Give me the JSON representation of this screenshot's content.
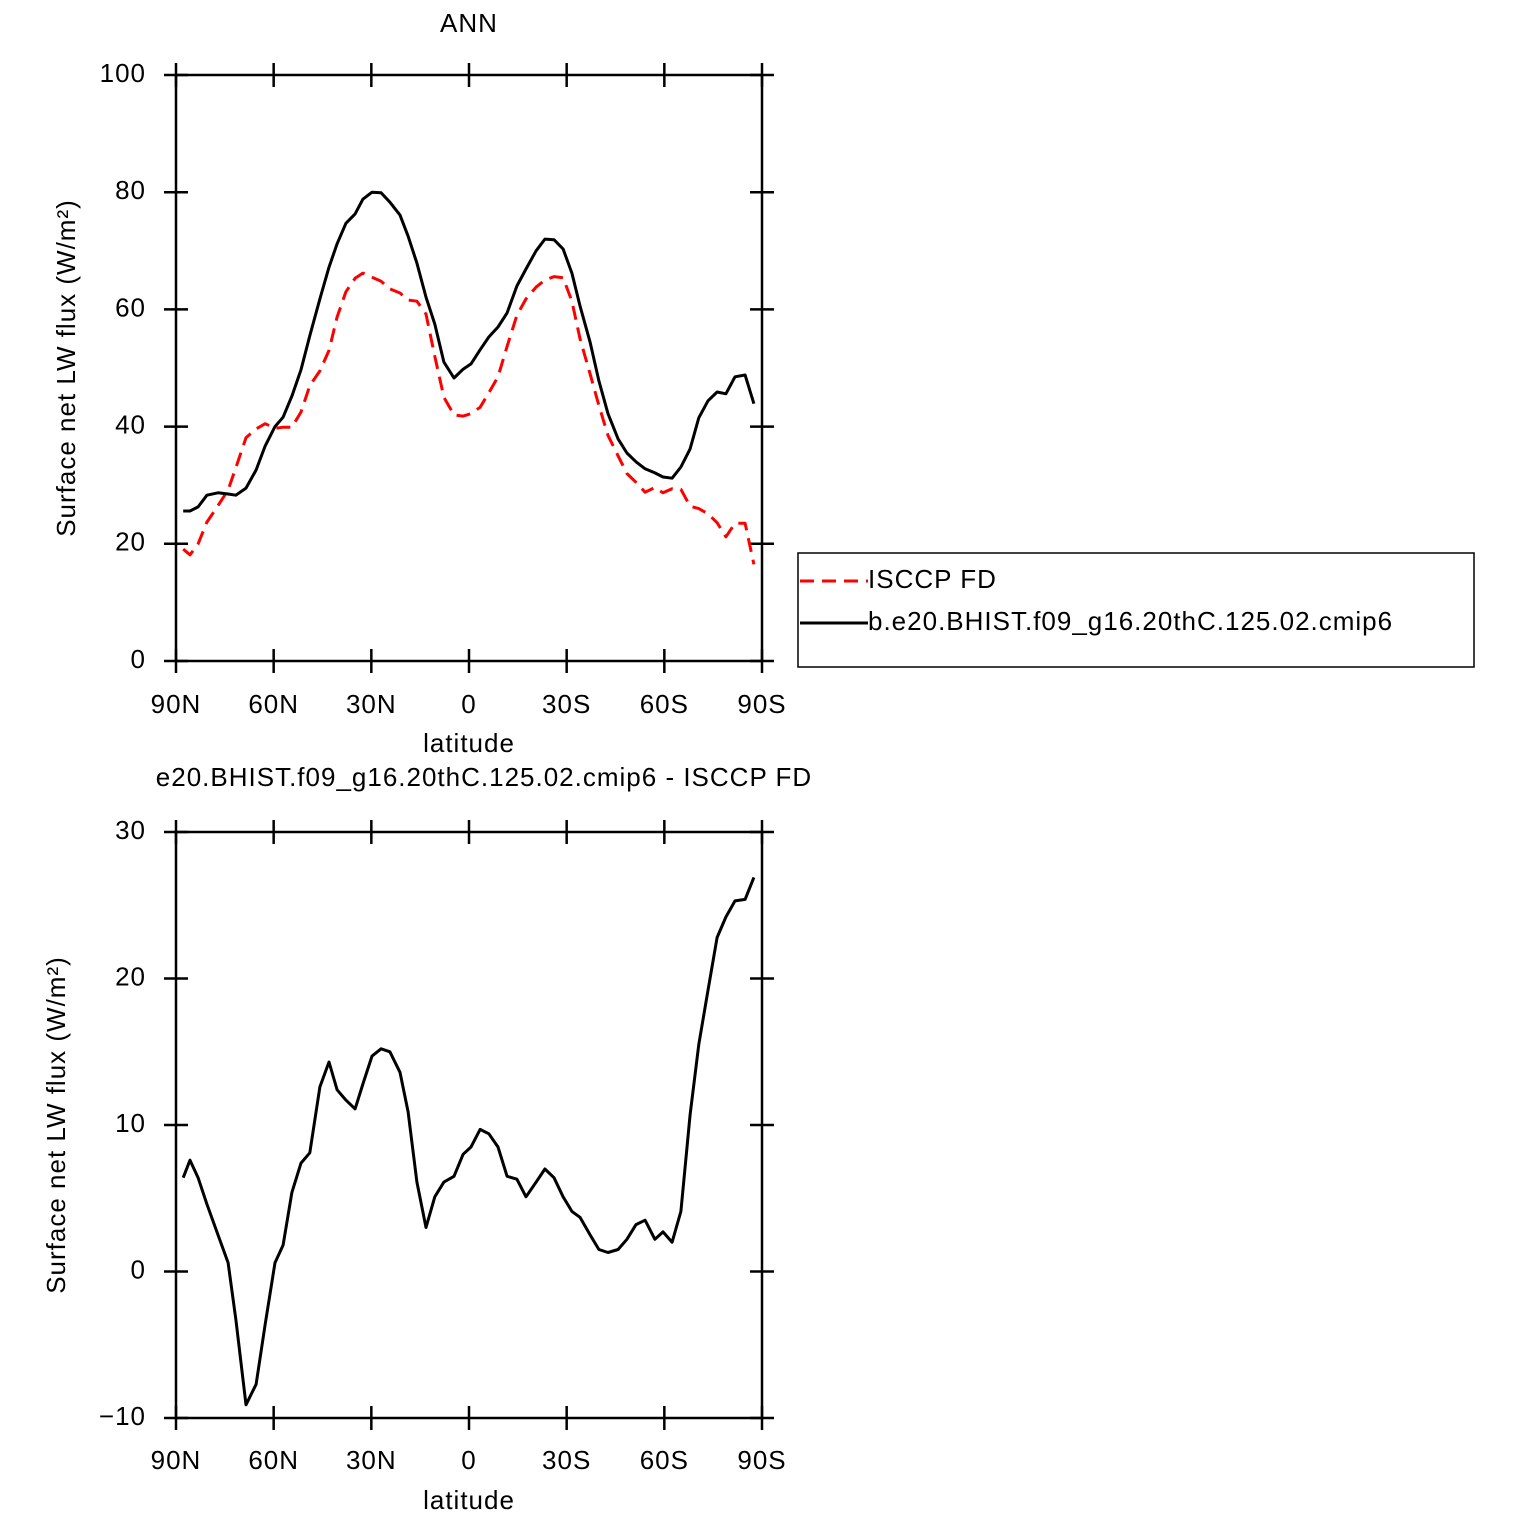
{
  "chart_data": [
    {
      "type": "line",
      "title": "ANN",
      "xlabel": "latitude",
      "ylabel": "Surface net LW flux (W/m²)",
      "x": [
        87.8,
        85.7,
        83.2,
        80.5,
        77.1,
        74.0,
        71.6,
        68.5,
        65.4,
        62.6,
        59.6,
        57.1,
        54.4,
        51.6,
        48.9,
        45.8,
        43.0,
        40.5,
        37.8,
        35.0,
        32.6,
        29.8,
        27.0,
        24.3,
        21.2,
        18.7,
        16.0,
        13.2,
        10.5,
        7.7,
        4.6,
        1.8,
        -0.6,
        -3.4,
        -6.1,
        -8.9,
        -11.7,
        -14.7,
        -17.5,
        -20.6,
        -23.3,
        -26.1,
        -28.9,
        -31.6,
        -34.1,
        -37.2,
        -39.9,
        -42.7,
        -45.8,
        -48.5,
        -51.3,
        -54.1,
        -57.1,
        -59.6,
        -62.4,
        -65.1,
        -67.9,
        -70.6,
        -73.4,
        -76.2,
        -78.9,
        -81.7,
        -84.8,
        -87.5
      ],
      "xlim": [
        90,
        -90
      ],
      "xticks": [
        {
          "value": 90,
          "label": "90N"
        },
        {
          "value": 60,
          "label": "60N"
        },
        {
          "value": 30,
          "label": "30N"
        },
        0,
        {
          "value": -30,
          "label": "30S"
        },
        {
          "value": -60,
          "label": "60S"
        },
        {
          "value": -90,
          "label": "90S"
        }
      ],
      "ylim": [
        0,
        100
      ],
      "yticks": [
        0,
        20,
        40,
        60,
        80,
        100
      ],
      "legend": "right",
      "series": [
        {
          "name": "ISCCP FD",
          "color": "#ff0000",
          "dash": "dashed",
          "values": [
            19.1,
            18.1,
            20.0,
            23.7,
            26.5,
            29.2,
            33.0,
            38.1,
            39.6,
            40.5,
            39.7,
            39.9,
            39.9,
            42.5,
            47.0,
            49.5,
            53.0,
            58.7,
            63.0,
            65.3,
            66.2,
            65.5,
            64.8,
            63.5,
            62.8,
            61.6,
            61.4,
            59.2,
            52.0,
            45.0,
            42.0,
            41.8,
            42.2,
            43.3,
            45.8,
            48.5,
            53.7,
            59.0,
            61.8,
            63.8,
            65.0,
            65.6,
            65.4,
            61.4,
            55.0,
            49.0,
            43.6,
            38.5,
            35.0,
            32.0,
            30.5,
            28.8,
            29.6,
            28.7,
            29.4,
            29.3,
            26.4,
            26.0,
            25.1,
            23.6,
            21.2,
            23.5,
            23.5,
            16.5
          ]
        },
        {
          "name": "b.e20.BHIST.f09_g16.20thC.125.02.cmip6",
          "color": "#000000",
          "dash": "solid",
          "values": [
            25.6,
            25.6,
            26.3,
            28.3,
            28.7,
            28.5,
            28.3,
            29.5,
            32.6,
            36.7,
            40.0,
            41.6,
            45.2,
            49.7,
            55.5,
            61.8,
            67.2,
            71.2,
            74.7,
            76.3,
            78.8,
            80.0,
            79.9,
            78.3,
            76.1,
            72.5,
            67.9,
            62.1,
            57.5,
            51.0,
            48.3,
            49.8,
            50.7,
            53.1,
            55.3,
            57.0,
            59.4,
            64.0,
            66.9,
            70.0,
            72.0,
            71.9,
            70.3,
            66.2,
            60.6,
            54.4,
            47.8,
            42.2,
            37.9,
            35.5,
            34.0,
            32.8,
            32.1,
            31.4,
            31.2,
            33.1,
            36.2,
            41.5,
            44.4,
            45.9,
            45.6,
            48.5,
            48.8,
            43.9
          ]
        }
      ]
    },
    {
      "type": "line",
      "title": "e20.BHIST.f09_g16.20thC.125.02.cmip6 - ISCCP FD",
      "xlabel": "latitude",
      "ylabel": "Surface net LW flux (W/m²)",
      "x": [
        87.8,
        85.7,
        83.2,
        80.5,
        77.1,
        74.0,
        71.6,
        68.5,
        65.4,
        62.6,
        59.6,
        57.1,
        54.4,
        51.6,
        48.9,
        45.8,
        43.0,
        40.5,
        37.8,
        35.0,
        32.6,
        29.8,
        27.0,
        24.3,
        21.2,
        18.7,
        16.0,
        13.2,
        10.5,
        7.7,
        4.6,
        1.8,
        -0.6,
        -3.4,
        -6.1,
        -8.9,
        -11.7,
        -14.7,
        -17.5,
        -20.6,
        -23.3,
        -26.1,
        -28.9,
        -31.6,
        -34.1,
        -37.2,
        -39.9,
        -42.7,
        -45.8,
        -48.5,
        -51.3,
        -54.1,
        -57.1,
        -59.6,
        -62.4,
        -65.1,
        -67.9,
        -70.6,
        -73.4,
        -76.2,
        -78.9,
        -81.7,
        -84.8,
        -87.5
      ],
      "xlim": [
        90,
        -90
      ],
      "xticks": [
        {
          "value": 90,
          "label": "90N"
        },
        {
          "value": 60,
          "label": "60N"
        },
        {
          "value": 30,
          "label": "30N"
        },
        0,
        {
          "value": -30,
          "label": "30S"
        },
        {
          "value": -60,
          "label": "60S"
        },
        {
          "value": -90,
          "label": "90S"
        }
      ],
      "ylim": [
        -10,
        30
      ],
      "yticks": [
        {
          "value": -10,
          "label": "−10"
        },
        0,
        10,
        20,
        30
      ],
      "series": [
        {
          "color": "#000000",
          "dash": "solid",
          "values": [
            6.4,
            7.6,
            6.4,
            4.6,
            2.5,
            0.6,
            -3.3,
            -9.1,
            -7.7,
            -3.6,
            0.6,
            1.8,
            5.4,
            7.4,
            8.1,
            12.6,
            14.3,
            12.4,
            11.7,
            11.1,
            12.8,
            14.7,
            15.2,
            15.0,
            13.6,
            10.9,
            6.1,
            3.0,
            5.1,
            6.1,
            6.5,
            8.0,
            8.5,
            9.7,
            9.4,
            8.5,
            6.5,
            6.3,
            5.1,
            6.1,
            7.0,
            6.4,
            5.1,
            4.1,
            3.7,
            2.5,
            1.5,
            1.3,
            1.5,
            2.2,
            3.2,
            3.5,
            2.2,
            2.7,
            2.0,
            4.1,
            10.7,
            15.5,
            19.2,
            22.8,
            24.2,
            25.3,
            25.4,
            26.9
          ]
        }
      ]
    }
  ]
}
